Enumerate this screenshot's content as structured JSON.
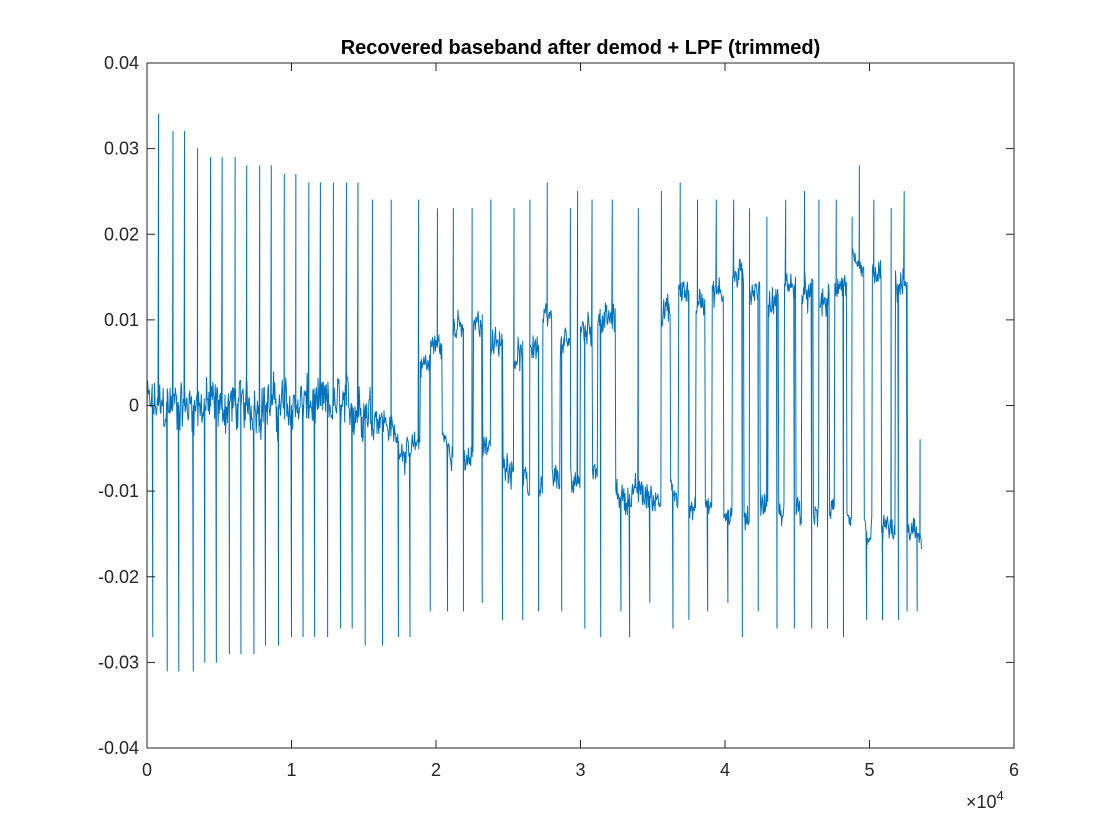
{
  "chart_data": {
    "type": "line",
    "title": "Recovered baseband after demod + LPF (trimmed)",
    "xlabel": "",
    "ylabel": "",
    "xlim": [
      0,
      60000
    ],
    "ylim": [
      -0.04,
      0.04
    ],
    "x_ticks": [
      0,
      10000,
      20000,
      30000,
      40000,
      50000,
      60000
    ],
    "x_tick_labels": [
      "0",
      "1",
      "2",
      "3",
      "4",
      "5",
      "6"
    ],
    "x_exponent_label": {
      "base": "×10",
      "exponent": "4"
    },
    "y_ticks": [
      -0.04,
      -0.03,
      -0.02,
      -0.01,
      0,
      0.01,
      0.02,
      0.03,
      0.04
    ],
    "y_tick_labels": [
      "-0.04",
      "-0.03",
      "-0.02",
      "-0.01",
      "0",
      "0.01",
      "0.02",
      "0.03",
      "0.04"
    ],
    "grid": false,
    "legend": false,
    "series": [
      {
        "color": "#0072BD",
        "x_end": 53600,
        "baseline": [
          [
            0,
            0.0
          ],
          [
            2000,
            0.0
          ],
          [
            4000,
            0.0
          ],
          [
            6000,
            0.0
          ],
          [
            8000,
            0.0
          ],
          [
            10000,
            0.0
          ],
          [
            12000,
            0.0
          ],
          [
            14000,
            0.0
          ],
          [
            16000,
            -0.001
          ],
          [
            17000,
            -0.003
          ],
          [
            18000,
            -0.006
          ],
          [
            19000,
            -0.004
          ],
          [
            20000,
            -0.003
          ],
          [
            21000,
            -0.005
          ],
          [
            22000,
            -0.007
          ],
          [
            23000,
            -0.005
          ],
          [
            24000,
            -0.004
          ],
          [
            25000,
            -0.007
          ],
          [
            26000,
            -0.009
          ],
          [
            27000,
            -0.01
          ],
          [
            28000,
            -0.009
          ],
          [
            29000,
            -0.008
          ],
          [
            30000,
            -0.009
          ],
          [
            31000,
            -0.007
          ],
          [
            32000,
            -0.009
          ],
          [
            33000,
            -0.011
          ],
          [
            34000,
            -0.01
          ],
          [
            35000,
            -0.011
          ],
          [
            36000,
            -0.01
          ],
          [
            37000,
            -0.011
          ],
          [
            38000,
            -0.012
          ],
          [
            39000,
            -0.011
          ],
          [
            40000,
            -0.012
          ],
          [
            41000,
            -0.013
          ],
          [
            42000,
            -0.012
          ],
          [
            43000,
            -0.011
          ],
          [
            44000,
            -0.013
          ],
          [
            45000,
            -0.012
          ],
          [
            46000,
            -0.013
          ],
          [
            47000,
            -0.012
          ],
          [
            48000,
            -0.013
          ],
          [
            49000,
            -0.014
          ],
          [
            50000,
            -0.015
          ],
          [
            51000,
            -0.014
          ],
          [
            52000,
            -0.016
          ],
          [
            53000,
            -0.015
          ],
          [
            53600,
            -0.015
          ]
        ],
        "upper_segments": [
          [
            18900,
            19600,
            0.005
          ],
          [
            19600,
            20400,
            0.007
          ],
          [
            21200,
            21900,
            0.009
          ],
          [
            22600,
            23200,
            0.01
          ],
          [
            23800,
            24600,
            0.007
          ],
          [
            25400,
            26000,
            0.006
          ],
          [
            26500,
            27100,
            0.007
          ],
          [
            27400,
            28000,
            0.01
          ],
          [
            28600,
            29300,
            0.007
          ],
          [
            30000,
            30800,
            0.009
          ],
          [
            31200,
            32400,
            0.01
          ],
          [
            35600,
            36200,
            0.011
          ],
          [
            36800,
            37500,
            0.013
          ],
          [
            38000,
            38600,
            0.012
          ],
          [
            39100,
            39900,
            0.013
          ],
          [
            40500,
            41300,
            0.015
          ],
          [
            41700,
            42400,
            0.013
          ],
          [
            43000,
            43700,
            0.012
          ],
          [
            44100,
            44900,
            0.014
          ],
          [
            45300,
            46100,
            0.013
          ],
          [
            46500,
            47200,
            0.012
          ],
          [
            47600,
            48400,
            0.014
          ],
          [
            48800,
            49600,
            0.016
          ],
          [
            50200,
            50800,
            0.015
          ],
          [
            51800,
            52600,
            0.014
          ]
        ],
        "spikes": [
          [
            400,
            0.0,
            -0.027
          ],
          [
            800,
            0.034,
            0.0
          ],
          [
            1400,
            0.0,
            -0.031
          ],
          [
            1800,
            0.032,
            0.0
          ],
          [
            2200,
            0.0,
            -0.031
          ],
          [
            2600,
            0.032,
            0.0
          ],
          [
            3200,
            0.0,
            -0.031
          ],
          [
            3500,
            0.03,
            0.0
          ],
          [
            4000,
            0.0,
            -0.03
          ],
          [
            4400,
            0.029,
            0.0
          ],
          [
            4800,
            0.0,
            -0.03
          ],
          [
            5200,
            0.029,
            0.0
          ],
          [
            5700,
            0.0,
            -0.029
          ],
          [
            6100,
            0.029,
            0.0
          ],
          [
            6500,
            0.0,
            -0.029
          ],
          [
            6900,
            0.028,
            0.0
          ],
          [
            7400,
            0.0,
            -0.029
          ],
          [
            7800,
            0.028,
            0.0
          ],
          [
            8200,
            0.0,
            -0.028
          ],
          [
            8600,
            0.028,
            0.0
          ],
          [
            9100,
            0.0,
            -0.028
          ],
          [
            9500,
            0.027,
            0.0
          ],
          [
            10000,
            0.0,
            -0.027
          ],
          [
            10300,
            0.027,
            0.0
          ],
          [
            10800,
            0.0,
            -0.027
          ],
          [
            11200,
            0.026,
            0.0
          ],
          [
            11600,
            0.0,
            -0.027
          ],
          [
            12000,
            0.026,
            0.0
          ],
          [
            12500,
            0.0,
            -0.027
          ],
          [
            12900,
            0.026,
            0.0
          ],
          [
            13400,
            0.0,
            -0.026
          ],
          [
            13800,
            0.026,
            0.0
          ],
          [
            14200,
            0.0,
            -0.026
          ],
          [
            14600,
            0.026,
            0.0
          ],
          [
            15100,
            0.0,
            -0.028
          ],
          [
            15600,
            0.024,
            0.0
          ],
          [
            16300,
            0.0,
            -0.028
          ],
          [
            16900,
            0.024,
            0.0
          ],
          [
            17400,
            0.0,
            -0.027
          ],
          [
            18200,
            0.0,
            -0.027
          ],
          [
            18800,
            0.024,
            0.0
          ],
          [
            19600,
            0.0,
            -0.024
          ],
          [
            20100,
            0.023,
            0.0
          ],
          [
            20800,
            0.0,
            -0.024
          ],
          [
            21200,
            0.023,
            0.0
          ],
          [
            21900,
            0.0,
            -0.024
          ],
          [
            22500,
            0.023,
            0.0
          ],
          [
            23200,
            0.0,
            -0.023
          ],
          [
            23800,
            0.024,
            0.0
          ],
          [
            24600,
            0.0,
            -0.025
          ],
          [
            25400,
            0.023,
            0.0
          ],
          [
            26000,
            0.0,
            -0.025
          ],
          [
            26500,
            0.024,
            0.0
          ],
          [
            27100,
            0.0,
            -0.024
          ],
          [
            27700,
            0.026,
            0.0
          ],
          [
            28700,
            0.0,
            -0.024
          ],
          [
            29300,
            0.023,
            0.0
          ],
          [
            29800,
            0.025,
            0.0
          ],
          [
            30300,
            0.0,
            -0.026
          ],
          [
            30800,
            0.024,
            0.0
          ],
          [
            31400,
            0.0,
            -0.027
          ],
          [
            32200,
            0.024,
            0.0
          ],
          [
            32800,
            0.0,
            -0.024
          ],
          [
            33400,
            0.0,
            -0.027
          ],
          [
            34000,
            0.023,
            0.0
          ],
          [
            34800,
            0.0,
            -0.023
          ],
          [
            35600,
            0.025,
            0.0
          ],
          [
            36400,
            0.0,
            -0.026
          ],
          [
            36900,
            0.026,
            0.0
          ],
          [
            37500,
            0.0,
            -0.025
          ],
          [
            38100,
            0.024,
            0.0
          ],
          [
            38800,
            0.0,
            -0.024
          ],
          [
            39400,
            0.024,
            0.0
          ],
          [
            40200,
            0.0,
            -0.023
          ],
          [
            40600,
            0.024,
            0.0
          ],
          [
            41200,
            0.0,
            -0.027
          ],
          [
            41700,
            0.023,
            0.0
          ],
          [
            42300,
            0.0,
            -0.024
          ],
          [
            42900,
            0.022,
            0.0
          ],
          [
            43600,
            0.0,
            -0.026
          ],
          [
            44200,
            0.024,
            0.0
          ],
          [
            44800,
            0.0,
            -0.026
          ],
          [
            45500,
            0.025,
            0.0
          ],
          [
            46000,
            0.0,
            -0.026
          ],
          [
            46500,
            0.024,
            0.0
          ],
          [
            47100,
            0.0,
            -0.026
          ],
          [
            47700,
            0.024,
            0.0
          ],
          [
            48200,
            0.0,
            -0.027
          ],
          [
            48800,
            0.022,
            0.0
          ],
          [
            49300,
            0.028,
            0.0
          ],
          [
            49800,
            0.0,
            -0.025
          ],
          [
            50300,
            0.024,
            0.0
          ],
          [
            50900,
            0.0,
            -0.025
          ],
          [
            51500,
            0.023,
            0.0
          ],
          [
            52000,
            0.0,
            -0.025
          ],
          [
            52400,
            0.025,
            0.0
          ],
          [
            52600,
            0.0,
            -0.024
          ],
          [
            53300,
            0.0,
            -0.024
          ],
          [
            53500,
            -0.004,
            0.0
          ]
        ]
      }
    ]
  }
}
